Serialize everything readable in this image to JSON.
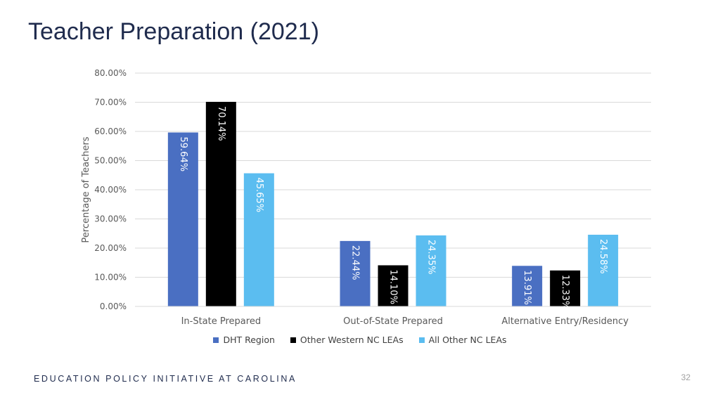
{
  "slide": {
    "title": "Teacher Preparation (2021)",
    "footer": "EDUCATION POLICY INITIATIVE AT CAROLINA",
    "page_number": "32"
  },
  "chart_data": {
    "type": "bar",
    "title": "",
    "xlabel": "",
    "ylabel": "Percentage of Teachers",
    "ylim": [
      0,
      80
    ],
    "y_ticks": [
      "0.00%",
      "10.00%",
      "20.00%",
      "30.00%",
      "40.00%",
      "50.00%",
      "60.00%",
      "70.00%",
      "80.00%"
    ],
    "categories": [
      "In-State Prepared",
      "Out-of-State Prepared",
      "Alternative Entry/Residency"
    ],
    "series": [
      {
        "name": "DHT Region",
        "color": "#4a6fc2",
        "values": [
          59.64,
          22.44,
          13.91
        ],
        "labels": [
          "59.64%",
          "22.44%",
          "13.91%"
        ]
      },
      {
        "name": "Other Western NC LEAs",
        "color": "#000000",
        "values": [
          70.14,
          14.1,
          12.33
        ],
        "labels": [
          "70.14%",
          "14.10%",
          "12.33%"
        ]
      },
      {
        "name": "All Other NC LEAs",
        "color": "#5bbdf0",
        "values": [
          45.65,
          24.35,
          24.58
        ],
        "labels": [
          "45.65%",
          "24.35%",
          "24.58%"
        ]
      }
    ],
    "grid": true,
    "legend_position": "bottom"
  }
}
